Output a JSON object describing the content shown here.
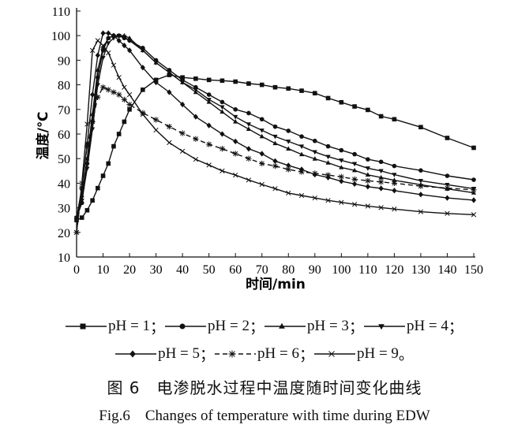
{
  "chart_data": {
    "type": "line",
    "title": "",
    "xlabel": "时间/min",
    "ylabel": "温度/℃",
    "xlim": [
      0,
      150
    ],
    "ylim": [
      10,
      110
    ],
    "xticks": [
      0,
      10,
      20,
      30,
      40,
      50,
      60,
      70,
      80,
      90,
      100,
      110,
      120,
      130,
      140,
      150
    ],
    "yticks": [
      10,
      20,
      30,
      40,
      50,
      60,
      70,
      80,
      90,
      100,
      110
    ],
    "grid": false,
    "legend_placement": "bottom",
    "x": [
      0,
      2,
      4,
      6,
      8,
      10,
      12,
      14,
      16,
      18,
      20,
      25,
      30,
      35,
      40,
      45,
      50,
      55,
      60,
      65,
      70,
      75,
      80,
      85,
      90,
      95,
      100,
      105,
      110,
      115,
      120,
      130,
      140,
      150
    ],
    "series": [
      {
        "name": "pH = 1",
        "marker": "square",
        "dash": false,
        "values": [
          25,
          26,
          29,
          33,
          38,
          43,
          48,
          55,
          60,
          65,
          70,
          78,
          82,
          84,
          83,
          82.5,
          82,
          81.7,
          81.3,
          80.5,
          80,
          79,
          78.5,
          77.6,
          76.6,
          74.6,
          72.9,
          71.2,
          69.8,
          67.2,
          66,
          62.8,
          58.4,
          54.4
        ]
      },
      {
        "name": "pH = 2",
        "marker": "circle",
        "dash": false,
        "values": [
          26,
          32,
          48,
          65,
          83,
          94,
          99,
          100,
          100,
          99,
          98,
          95,
          90,
          86,
          82,
          79,
          76,
          73,
          70,
          68.5,
          66,
          63,
          61.3,
          59,
          57.2,
          55,
          53.4,
          51.8,
          49.7,
          48.7,
          47,
          45.2,
          43,
          41.4
        ]
      },
      {
        "name": "pH = 3",
        "marker": "triangle-up",
        "dash": false,
        "values": [
          26,
          35,
          50,
          68,
          86,
          95,
          99,
          100,
          100,
          100,
          99,
          94,
          89,
          85,
          81,
          77,
          73,
          69,
          65,
          62,
          59,
          56.2,
          54,
          51.7,
          49.9,
          48.3,
          46.4,
          45.2,
          43.4,
          42.3,
          41.2,
          39.4,
          37.7,
          36.1
        ]
      },
      {
        "name": "pH = 4",
        "marker": "triangle-down",
        "dash": false,
        "values": [
          26,
          33,
          46,
          62,
          80,
          91,
          97,
          99,
          100,
          99.5,
          98,
          94,
          89,
          85,
          81,
          78,
          74,
          71,
          67,
          64,
          61.5,
          59,
          57,
          55,
          52.7,
          50.8,
          49.3,
          47.9,
          46.1,
          45,
          43.5,
          41,
          39.4,
          37.8
        ]
      },
      {
        "name": "pH = 5",
        "marker": "diamond",
        "dash": false,
        "values": [
          26,
          38,
          56,
          76,
          92,
          101,
          101,
          100,
          98,
          96,
          94,
          87,
          81,
          77,
          72,
          67,
          63.5,
          60,
          57,
          54,
          52,
          49,
          47.2,
          45.6,
          43.5,
          42.3,
          40.8,
          39.7,
          38.6,
          37.9,
          37,
          35.4,
          34,
          33.1
        ]
      },
      {
        "name": "pH = 6",
        "marker": "star",
        "dash": true,
        "values": [
          20,
          38,
          55,
          65,
          75,
          79,
          78,
          77,
          76,
          74,
          72,
          68.6,
          65.8,
          63,
          60.3,
          58,
          55.8,
          54,
          52,
          50,
          48,
          47,
          45.6,
          44.6,
          44,
          43.3,
          42.6,
          41.6,
          41,
          40.5,
          40,
          38.8,
          38,
          37.3
        ]
      },
      {
        "name": "pH = 9",
        "marker": "x",
        "dash": false,
        "values": [
          20,
          40,
          64,
          94,
          98,
          96,
          93,
          88,
          83,
          79,
          76,
          68,
          61.6,
          56.5,
          53,
          49.7,
          47.4,
          45,
          43.3,
          41.3,
          39.5,
          37.8,
          36,
          35,
          34,
          33,
          32.2,
          31.4,
          30.7,
          30.1,
          29.5,
          28.4,
          27.7,
          27.2
        ]
      }
    ]
  },
  "legend": {
    "separators": [
      "；",
      "；",
      "；",
      "；",
      "；",
      "；",
      "。"
    ]
  },
  "caption": {
    "chinese": "图 6　电渗脱水过程中温度随时间变化曲线",
    "english": "Fig.6　Changes of temperature with time during EDW"
  },
  "colors": {
    "line": "#111111",
    "background": "#ffffff"
  }
}
